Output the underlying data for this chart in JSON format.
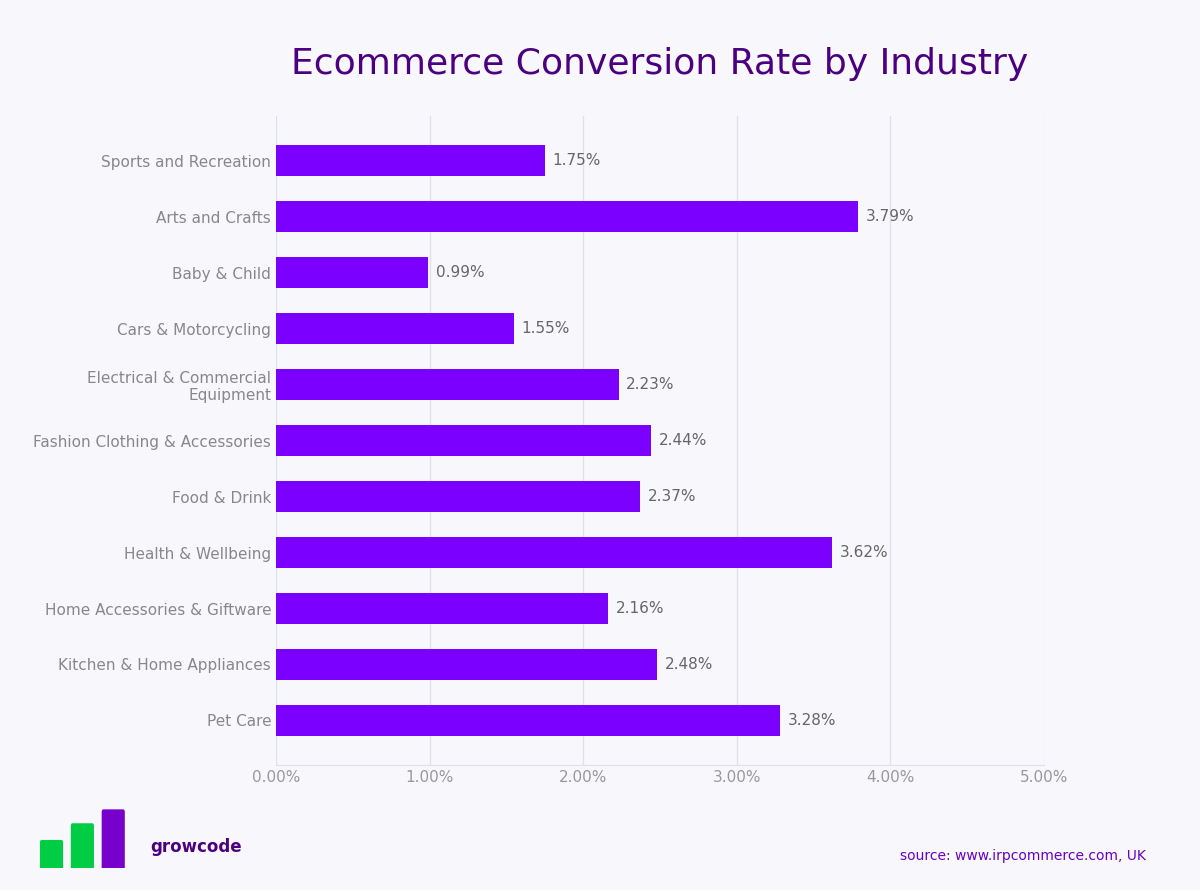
{
  "title": "Ecommerce Conversion Rate by Industry",
  "title_color": "#4B0082",
  "title_fontsize": 26,
  "background_color": "#F8F8FC",
  "bar_color": "#7B00FF",
  "categories": [
    "Sports and Recreation",
    "Arts and Crafts",
    "Baby & Child",
    "Cars & Motorcycling",
    "Electrical & Commercial\nEquipment",
    "Fashion Clothing & Accessories",
    "Food & Drink",
    "Health & Wellbeing",
    "Home Accessories & Giftware",
    "Kitchen & Home Appliances",
    "Pet Care"
  ],
  "values": [
    1.75,
    3.79,
    0.99,
    1.55,
    2.23,
    2.44,
    2.37,
    3.62,
    2.16,
    2.48,
    3.28
  ],
  "labels": [
    "1.75%",
    "3.79%",
    "0.99%",
    "1.55%",
    "2.23%",
    "2.44%",
    "2.37%",
    "3.62%",
    "2.16%",
    "2.48%",
    "3.28%"
  ],
  "xlim": [
    0,
    5.0
  ],
  "xticks": [
    0.0,
    1.0,
    2.0,
    3.0,
    4.0,
    5.0
  ],
  "xtick_labels": [
    "0.00%",
    "1.00%",
    "2.00%",
    "3.00%",
    "4.00%",
    "5.00%"
  ],
  "label_fontsize": 11,
  "tick_label_fontsize": 11,
  "tick_label_color": "#999999",
  "axis_label_color": "#888888",
  "bar_label_fontsize": 11,
  "bar_label_color": "#666666",
  "grid_color": "#E0E0E8",
  "source_text": "source: www.irpcommerce.com, UK",
  "source_color": "#6600CC",
  "logo_text": "growcode",
  "logo_color": "#4B0082",
  "logo_bar_colors": [
    "#00CC44",
    "#00CC44",
    "#7700CC"
  ],
  "logo_dot_color": "#4B0082"
}
